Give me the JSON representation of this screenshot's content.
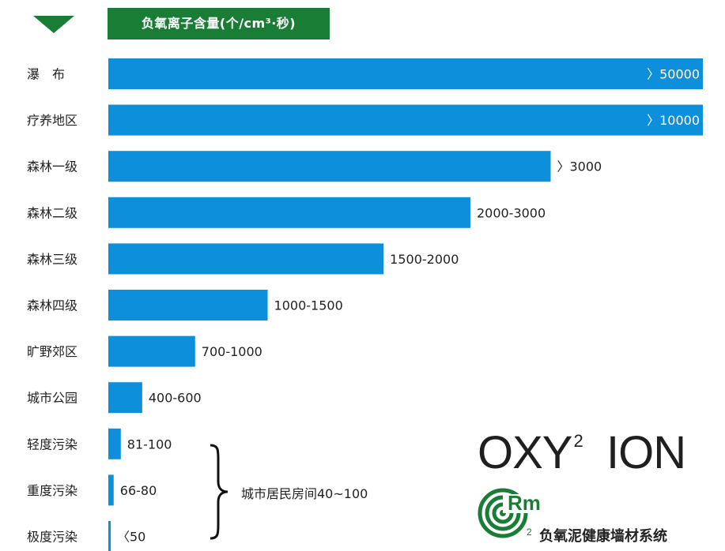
{
  "chart_data": {
    "type": "bar",
    "orientation": "horizontal",
    "title": "负氧离子含量(个/cm³·秒)",
    "categories": [
      "瀑　布",
      "疗养地区",
      "森林一级",
      "森林二级",
      "森林三级",
      "森林四级",
      "旷野郊区",
      "城市公园",
      "轻度污染",
      "重度污染",
      "极度污染"
    ],
    "value_labels": [
      "〉50000",
      "〉10000",
      "〉3000",
      "2000-3000",
      "1500-2000",
      "1000-1500",
      "700-1000",
      "400-600",
      "81-100",
      "66-80",
      "〈50"
    ],
    "relative_bar_length": [
      1.0,
      1.0,
      0.744,
      0.609,
      0.463,
      0.268,
      0.146,
      0.057,
      0.021,
      0.009,
      0.004
    ],
    "bar_color": "#0d8fdb",
    "annotation": "城市居民房间40~100",
    "annotation_target_categories": [
      "轻度污染",
      "重度污染",
      "极度污染"
    ]
  },
  "brand": {
    "product_name": "OXY",
    "product_superscript": "2",
    "product_suffix": "ION",
    "logo_text": "Rm",
    "logo_subscript": "2",
    "company_name": "负氧泥健康墙材系统",
    "brand_color": "#1a7d35"
  }
}
